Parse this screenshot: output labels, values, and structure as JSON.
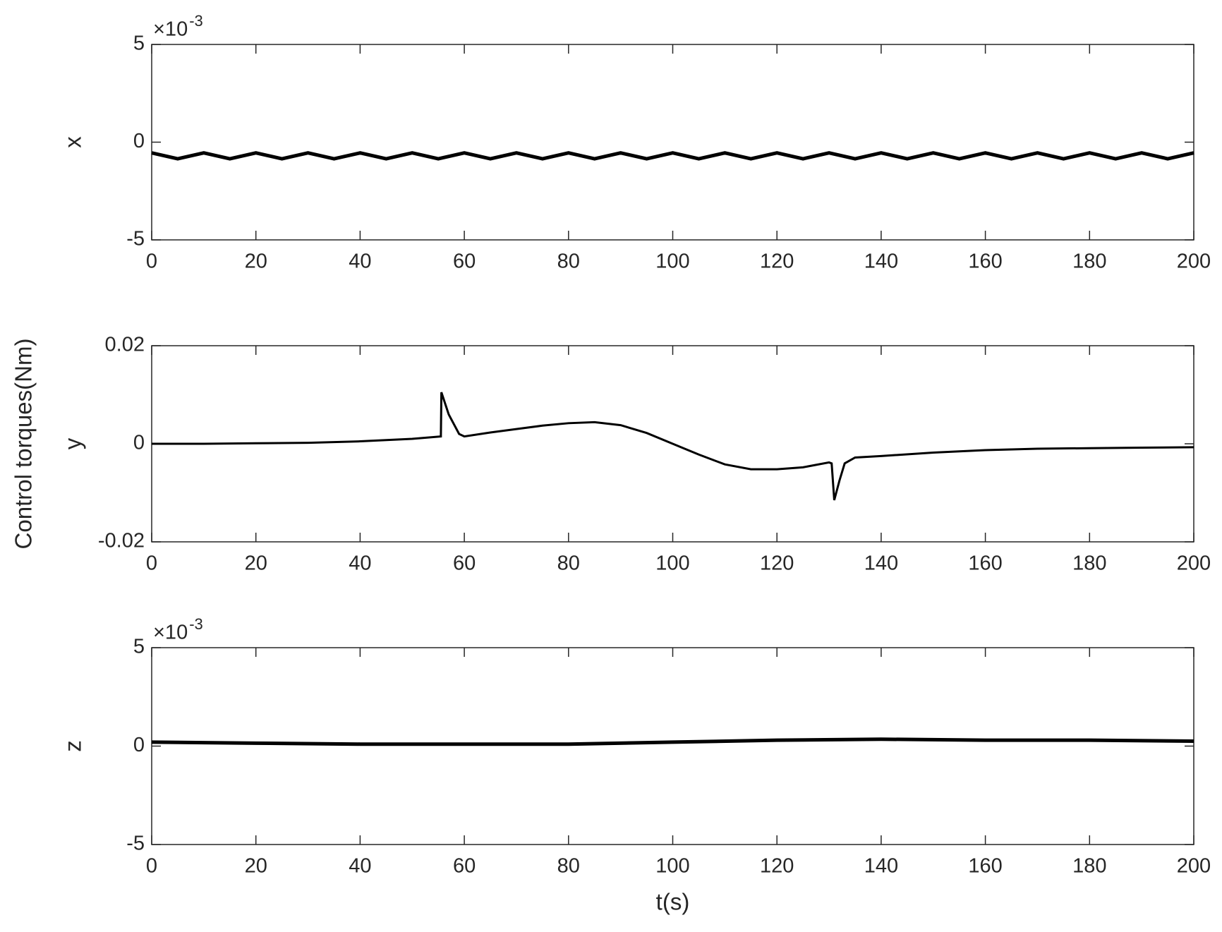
{
  "figure_ylabel": "Control torques(Nm)",
  "chart_data": [
    {
      "type": "line",
      "ylabel": "x",
      "multiplier": {
        "base": "×10",
        "exponent": "-3"
      },
      "xlim": [
        0,
        200
      ],
      "xticks": [
        0,
        20,
        40,
        60,
        80,
        100,
        120,
        140,
        160,
        180,
        200
      ],
      "ylim": [
        -5,
        5
      ],
      "yticks": [
        -5,
        0,
        5
      ],
      "color": "#000000",
      "x": [
        0,
        5,
        10,
        15,
        20,
        25,
        30,
        35,
        40,
        45,
        50,
        55,
        60,
        65,
        70,
        75,
        80,
        85,
        90,
        95,
        100,
        105,
        110,
        115,
        120,
        125,
        130,
        135,
        140,
        145,
        150,
        155,
        160,
        165,
        170,
        175,
        180,
        185,
        190,
        195,
        200
      ],
      "values": [
        -0.55,
        -0.85,
        -0.55,
        -0.85,
        -0.55,
        -0.85,
        -0.55,
        -0.85,
        -0.55,
        -0.85,
        -0.55,
        -0.85,
        -0.55,
        -0.85,
        -0.55,
        -0.85,
        -0.55,
        -0.85,
        -0.55,
        -0.85,
        -0.55,
        -0.85,
        -0.55,
        -0.85,
        -0.55,
        -0.85,
        -0.55,
        -0.85,
        -0.55,
        -0.85,
        -0.55,
        -0.85,
        -0.55,
        -0.85,
        -0.55,
        -0.85,
        -0.55,
        -0.85,
        -0.55,
        -0.85,
        -0.55
      ]
    },
    {
      "type": "line",
      "ylabel": "y",
      "xlim": [
        0,
        200
      ],
      "xticks": [
        0,
        20,
        40,
        60,
        80,
        100,
        120,
        140,
        160,
        180,
        200
      ],
      "ylim": [
        -0.02,
        0.02
      ],
      "yticks": [
        -0.02,
        0,
        0.02
      ],
      "color": "#000000",
      "x": [
        0,
        10,
        20,
        30,
        40,
        50,
        55.5,
        55.6,
        57,
        59,
        60,
        65,
        70,
        75,
        80,
        85,
        90,
        95,
        100,
        105,
        110,
        115,
        120,
        125,
        130,
        130.5,
        131,
        132,
        133,
        135,
        140,
        150,
        160,
        170,
        180,
        190,
        200
      ],
      "values": [
        0,
        0,
        0.0001,
        0.0002,
        0.0005,
        0.001,
        0.0015,
        0.0105,
        0.006,
        0.002,
        0.0015,
        0.0023,
        0.003,
        0.0037,
        0.0042,
        0.0044,
        0.0038,
        0.0022,
        0,
        -0.0022,
        -0.0042,
        -0.0052,
        -0.0052,
        -0.0048,
        -0.0038,
        -0.004,
        -0.0115,
        -0.0075,
        -0.004,
        -0.0028,
        -0.0025,
        -0.0018,
        -0.0013,
        -0.001,
        -0.0009,
        -0.0008,
        -0.0007
      ]
    },
    {
      "type": "line",
      "ylabel": "z",
      "xlabel": "t(s)",
      "multiplier": {
        "base": "×10",
        "exponent": "-3"
      },
      "xlim": [
        0,
        200
      ],
      "xticks": [
        0,
        20,
        40,
        60,
        80,
        100,
        120,
        140,
        160,
        180,
        200
      ],
      "ylim": [
        -5,
        5
      ],
      "yticks": [
        -5,
        0,
        5
      ],
      "color": "#000000",
      "x": [
        0,
        20,
        40,
        60,
        80,
        100,
        120,
        140,
        160,
        180,
        200
      ],
      "values": [
        0.2,
        0.15,
        0.1,
        0.1,
        0.1,
        0.2,
        0.3,
        0.35,
        0.3,
        0.3,
        0.25
      ]
    }
  ]
}
